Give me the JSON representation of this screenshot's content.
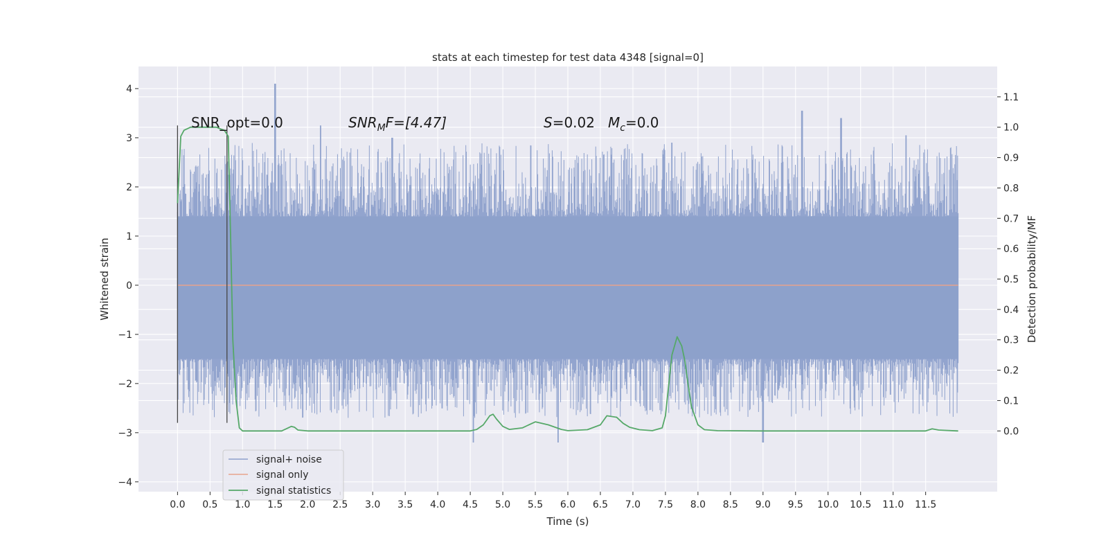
{
  "chart_data": {
    "type": "line",
    "title": "stats at each timestep for test data 4348 [signal=0]",
    "xlabel": "Time (s)",
    "ylabel": "Whitened strain",
    "y2label": "Detection probability/MF",
    "xlim": [
      -0.6,
      12.6
    ],
    "ylim": [
      -4.2,
      4.45
    ],
    "y2lim": [
      -0.2,
      1.2
    ],
    "xticks": [
      0.0,
      0.5,
      1.0,
      1.5,
      2.0,
      2.5,
      3.0,
      3.5,
      4.0,
      4.5,
      5.0,
      5.5,
      6.0,
      6.5,
      7.0,
      7.5,
      8.0,
      8.5,
      9.0,
      9.5,
      10.0,
      10.5,
      11.0,
      11.5
    ],
    "xtick_labels": [
      "0.0",
      "0.5",
      "1.0",
      "1.5",
      "2.0",
      "2.5",
      "3.0",
      "3.5",
      "4.0",
      "4.5",
      "5.0",
      "5.5",
      "6.0",
      "6.5",
      "7.0",
      "7.5",
      "8.0",
      "8.5",
      "9.0",
      "9.5",
      "10.0",
      "10.5",
      "11.0",
      "11.5"
    ],
    "yticks": [
      -4,
      -3,
      -2,
      -1,
      0,
      1,
      2,
      3,
      4
    ],
    "ytick_labels": [
      "−4",
      "−3",
      "−2",
      "−1",
      "0",
      "1",
      "2",
      "3",
      "4"
    ],
    "y2ticks": [
      0.0,
      0.1,
      0.2,
      0.3,
      0.4,
      0.5,
      0.6,
      0.7,
      0.8,
      0.9,
      1.0,
      1.1
    ],
    "y2tick_labels": [
      "0.0",
      "0.1",
      "0.2",
      "0.3",
      "0.4",
      "0.5",
      "0.6",
      "0.7",
      "0.8",
      "0.9",
      "1.0",
      "1.1"
    ],
    "grid": true,
    "legend_position": "lower-left",
    "legend": [
      "signal+ noise",
      "signal only",
      "signal statistics"
    ],
    "annotations": {
      "snr_opt": "SNR_opt=0.0",
      "snr_mf_main": "SNR",
      "snr_mf_sub": "M",
      "snr_mf_rest": "F=[4.47]",
      "s_var": "S",
      "s_val": "=0.02",
      "mc_var": "M",
      "mc_sub": "c",
      "mc_val": "=0.0"
    },
    "series": [
      {
        "name": "signal+ noise",
        "axis": "left",
        "color": "#8da0cb",
        "duration_s": 12.0,
        "envelope_upper": 1.4,
        "envelope_lower": -1.5,
        "notable_peaks": [
          {
            "x": 1.5,
            "y": 4.1
          },
          {
            "x": 9.6,
            "y": 3.55
          },
          {
            "x": 2.2,
            "y": 3.25
          },
          {
            "x": 10.2,
            "y": 3.4
          },
          {
            "x": 11.2,
            "y": 3.05
          },
          {
            "x": 3.3,
            "y": 3.0
          },
          {
            "x": 7.6,
            "y": 2.9
          },
          {
            "x": 9.0,
            "y": -3.2
          },
          {
            "x": 5.85,
            "y": -3.2
          },
          {
            "x": 4.55,
            "y": -3.2
          }
        ]
      },
      {
        "name": "signal only",
        "axis": "left",
        "color": "#e8a38c",
        "x": [
          0.0,
          12.0
        ],
        "y": [
          0.0,
          0.0
        ]
      },
      {
        "name": "signal statistics",
        "axis": "right",
        "color": "#55a868",
        "x": [
          0.0,
          0.05,
          0.1,
          0.15,
          0.2,
          0.3,
          0.4,
          0.5,
          0.6,
          0.65,
          0.72,
          0.78,
          0.82,
          0.85,
          0.9,
          0.95,
          1.0,
          1.2,
          1.4,
          1.6,
          1.7,
          1.75,
          1.8,
          1.85,
          2.0,
          2.5,
          3.0,
          3.5,
          4.0,
          4.5,
          4.6,
          4.7,
          4.8,
          4.85,
          4.9,
          5.0,
          5.1,
          5.3,
          5.5,
          5.7,
          5.9,
          6.0,
          6.3,
          6.5,
          6.6,
          6.75,
          6.85,
          6.95,
          7.1,
          7.3,
          7.45,
          7.5,
          7.55,
          7.6,
          7.68,
          7.75,
          7.8,
          7.85,
          7.9,
          8.0,
          8.1,
          8.3,
          9.0,
          10.0,
          11.0,
          11.5,
          11.6,
          11.7,
          12.0
        ],
        "y": [
          0.75,
          0.97,
          0.99,
          0.995,
          1.0,
          1.0,
          1.0,
          1.0,
          1.0,
          0.995,
          0.99,
          0.97,
          0.6,
          0.3,
          0.1,
          0.01,
          0.0,
          0.0,
          0.0,
          0.0,
          0.01,
          0.015,
          0.012,
          0.003,
          0.0,
          0.0,
          0.0,
          0.0,
          0.0,
          0.0,
          0.005,
          0.02,
          0.05,
          0.055,
          0.04,
          0.015,
          0.005,
          0.01,
          0.03,
          0.02,
          0.005,
          0.001,
          0.004,
          0.02,
          0.05,
          0.045,
          0.025,
          0.012,
          0.004,
          0.001,
          0.01,
          0.05,
          0.15,
          0.25,
          0.31,
          0.28,
          0.23,
          0.15,
          0.08,
          0.02,
          0.004,
          0.001,
          0.0,
          0.0,
          0.0,
          0.0,
          0.007,
          0.003,
          0.0
        ]
      }
    ],
    "vertical_markers": [
      {
        "x": 0.0,
        "y_from": -2.8,
        "y_to": 3.25
      },
      {
        "x": 0.76,
        "y_from": -2.8,
        "y_to": 3.25
      }
    ]
  }
}
